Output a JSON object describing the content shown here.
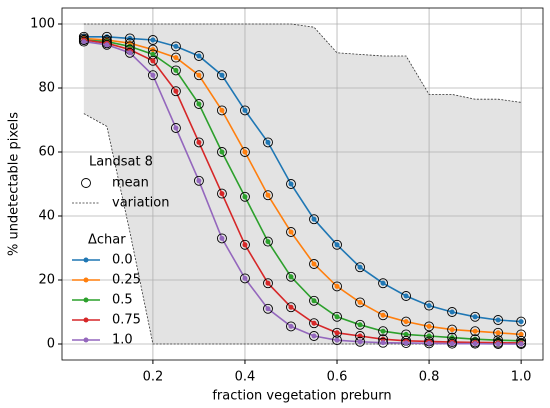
{
  "chart_data": {
    "type": "line",
    "x_label": "fraction vegetation preburn",
    "y_label": "% undetectable pixels",
    "x": [
      0.05,
      0.1,
      0.15,
      0.2,
      0.25,
      0.3,
      0.35,
      0.4,
      0.45,
      0.5,
      0.55,
      0.6,
      0.65,
      0.7,
      0.75,
      0.8,
      0.85,
      0.9,
      0.95,
      1.0
    ],
    "series": [
      {
        "name": "0.0",
        "color": "#1f77b4",
        "values": [
          96,
          96,
          95.5,
          95,
          93,
          90,
          84,
          73,
          63,
          50,
          39,
          31,
          24,
          19,
          15,
          12,
          10,
          8.5,
          7.5,
          7
        ]
      },
      {
        "name": "0.25",
        "color": "#ff7f0e",
        "values": [
          95.5,
          95,
          94,
          92,
          89.5,
          84,
          73,
          60,
          46.5,
          35,
          25,
          18,
          13,
          9,
          7,
          5.5,
          4.5,
          4,
          3.5,
          3
        ]
      },
      {
        "name": "0.5",
        "color": "#2ca02c",
        "values": [
          95,
          94.5,
          93,
          90.5,
          85.5,
          75,
          60,
          46,
          32,
          21,
          13.5,
          8.5,
          6,
          4,
          3,
          2.5,
          2,
          1.5,
          1.2,
          1
        ]
      },
      {
        "name": "0.75",
        "color": "#d62728",
        "values": [
          95,
          94,
          92,
          88.5,
          79,
          63,
          47,
          31,
          19,
          11.5,
          6.5,
          3.5,
          2.5,
          1.5,
          1,
          0.8,
          0.6,
          0.5,
          0.4,
          0.3
        ]
      },
      {
        "name": "1.0",
        "color": "#9467bd",
        "values": [
          94.5,
          93.5,
          91,
          84,
          67.5,
          51,
          33,
          20.5,
          11,
          5.5,
          2.5,
          1.2,
          0.7,
          0.4,
          0.3,
          0.2,
          0.1,
          0.1,
          0,
          0
        ]
      }
    ],
    "variation": {
      "upper": [
        100,
        100,
        100,
        100,
        100,
        100,
        100,
        100,
        100,
        100,
        99,
        91,
        90.5,
        90,
        90,
        78,
        78,
        76.5,
        76.5,
        75.5
      ],
      "lower": [
        72,
        68,
        35,
        0,
        0,
        0,
        0,
        0,
        0,
        0,
        0,
        0,
        0,
        0,
        0,
        0,
        0,
        0,
        0,
        0
      ]
    },
    "legend": {
      "title": "Landsat 8",
      "mean": "mean",
      "variation": "variation",
      "series_title": "Δchar"
    },
    "xlim": [
      0.0025,
      1.0475
    ],
    "ylim": [
      -5,
      105
    ],
    "xticks": [
      0.2,
      0.4,
      0.6,
      0.8,
      {
        "value": 1,
        "label": "1.0"
      }
    ],
    "yticks": [
      0,
      20,
      40,
      60,
      80,
      100
    ],
    "grid": true
  }
}
